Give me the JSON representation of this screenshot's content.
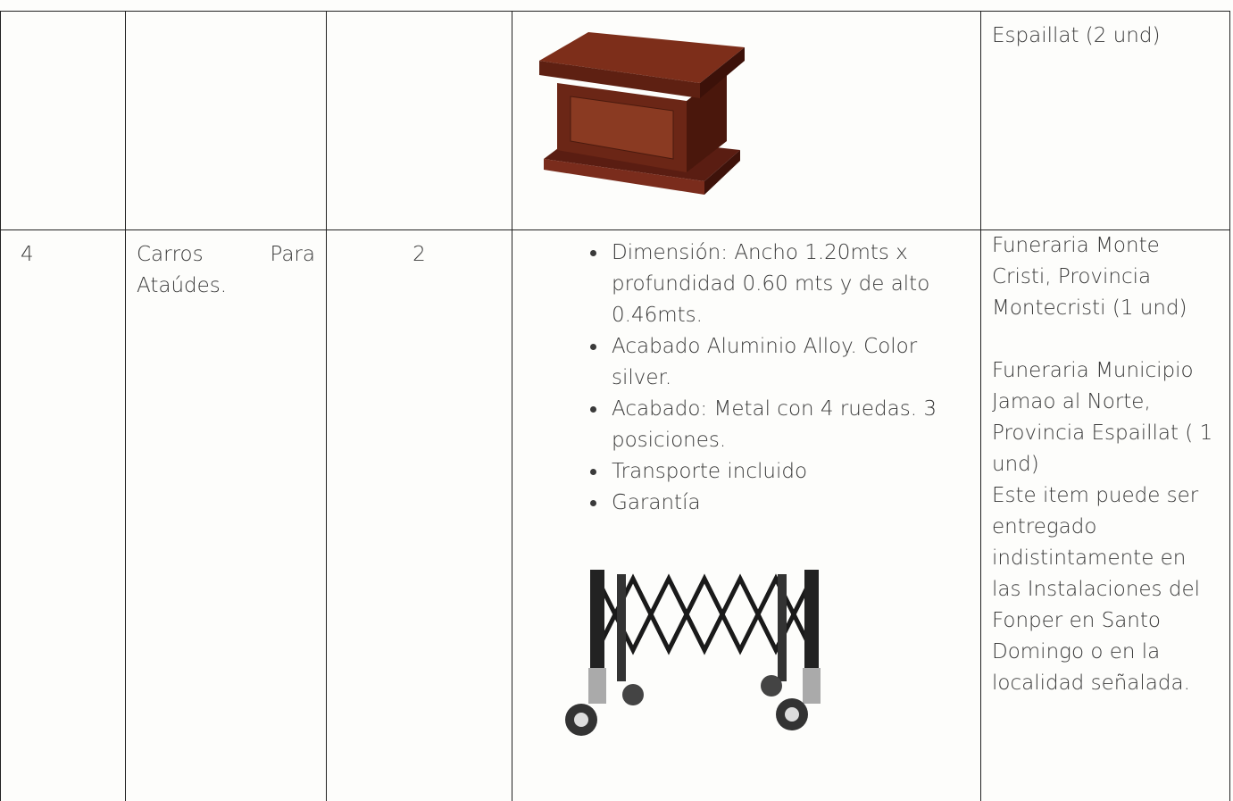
{
  "table": {
    "rows": [
      {
        "location": [
          "Espaillat (2 und)"
        ]
      },
      {
        "number": "4",
        "item": "Carros Para Ataúdes.",
        "quantity": "2",
        "specs": [
          "Dimensión: Ancho 1.20mts x profundidad 0.60 mts y de alto 0.46mts.",
          "Acabado Aluminio Alloy. Color silver.",
          "Acabado: Metal con 4 ruedas. 3 posiciones.",
          "Transporte incluido",
          "Garantía"
        ],
        "location": [
          "Funeraria Monte Cristi, Provincia Montecristi (1 und)",
          "Funeraria Municipio Jamao al Norte, Provincia Espaillat ( 1 und)",
          "Este item puede ser entregado indistintamente en las Instalaciones del Fonper en Santo Domingo o en la localidad señalada."
        ]
      }
    ]
  }
}
